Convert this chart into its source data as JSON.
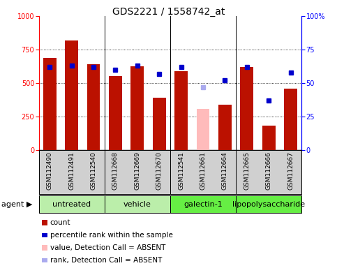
{
  "title": "GDS2221 / 1558742_at",
  "samples": [
    "GSM112490",
    "GSM112491",
    "GSM112540",
    "GSM112668",
    "GSM112669",
    "GSM112670",
    "GSM112541",
    "GSM112661",
    "GSM112664",
    "GSM112665",
    "GSM112666",
    "GSM112667"
  ],
  "bar_values": [
    690,
    820,
    640,
    550,
    625,
    390,
    590,
    305,
    340,
    620,
    185,
    460
  ],
  "bar_absent": [
    false,
    false,
    false,
    false,
    false,
    false,
    false,
    true,
    false,
    false,
    false,
    false
  ],
  "rank_values": [
    62,
    63,
    62,
    60,
    63,
    57,
    62,
    47,
    52,
    62,
    37,
    58
  ],
  "rank_absent": [
    false,
    false,
    false,
    false,
    false,
    false,
    false,
    true,
    false,
    false,
    false,
    false
  ],
  "agents": [
    {
      "label": "untreated",
      "start": 0,
      "end": 3,
      "color": "#bbeeaa"
    },
    {
      "label": "vehicle",
      "start": 3,
      "end": 6,
      "color": "#bbeeaa"
    },
    {
      "label": "galectin-1",
      "start": 6,
      "end": 9,
      "color": "#66ee44"
    },
    {
      "label": "lipopolysaccharide",
      "start": 9,
      "end": 12,
      "color": "#66ee44"
    }
  ],
  "bar_color_normal": "#bb1100",
  "bar_color_absent": "#ffbbbb",
  "rank_color_normal": "#0000cc",
  "rank_color_absent": "#aaaaee",
  "ylim_left": [
    0,
    1000
  ],
  "ylim_right": [
    0,
    100
  ],
  "yticks_left": [
    0,
    250,
    500,
    750,
    1000
  ],
  "yticks_right": [
    0,
    25,
    50,
    75,
    100
  ],
  "bar_width": 0.6,
  "tick_fontsize": 7,
  "title_fontsize": 10,
  "legend_fontsize": 7.5,
  "agent_fontsize": 8,
  "sample_fontsize": 6.5
}
